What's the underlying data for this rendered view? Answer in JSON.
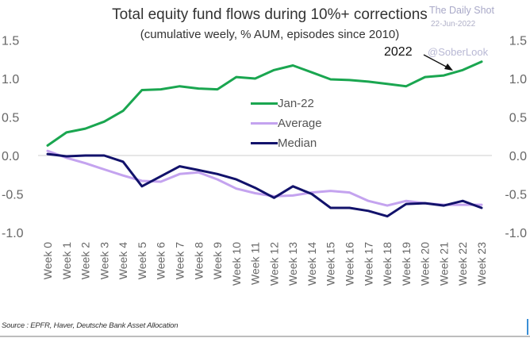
{
  "chart_data": {
    "type": "line",
    "title": "Total equity fund flows during 10%+ corrections",
    "subtitle": "(cumulative weely, % AUM, episodes since 2010)",
    "xlabel": "",
    "ylabel": "",
    "ylim": [
      -1.0,
      1.5
    ],
    "yticks": [
      "1.5",
      "1.0",
      "0.5",
      "0.0",
      "-0.5",
      "-1.0"
    ],
    "ytick_values": [
      1.5,
      1.0,
      0.5,
      0.0,
      -0.5,
      -1.0
    ],
    "grid": false,
    "legend_position": "center",
    "categories": [
      "Week 0",
      "Week 1",
      "Week 2",
      "Week 3",
      "Week 4",
      "Week 5",
      "Week 6",
      "Week 7",
      "Week 8",
      "Week 9",
      "Week 10",
      "Week 11",
      "Week 12",
      "Week 13",
      "Week 14",
      "Week 15",
      "Week 16",
      "Week 17",
      "Week 18",
      "Week 19",
      "Week 20",
      "Week 21",
      "Week 22",
      "Week 23"
    ],
    "series": [
      {
        "name": "Jan-22",
        "color": "#1aa650",
        "width": 3,
        "values": [
          0.13,
          0.3,
          0.35,
          0.44,
          0.58,
          0.85,
          0.86,
          0.9,
          0.87,
          0.86,
          1.02,
          1.0,
          1.11,
          1.17,
          1.08,
          0.99,
          0.98,
          0.96,
          0.93,
          0.9,
          1.02,
          1.04,
          1.11,
          1.22
        ]
      },
      {
        "name": "Average",
        "color": "#c4a3ef",
        "width": 3,
        "values": [
          0.06,
          -0.03,
          -0.1,
          -0.18,
          -0.26,
          -0.33,
          -0.34,
          -0.24,
          -0.22,
          -0.31,
          -0.43,
          -0.49,
          -0.53,
          -0.52,
          -0.48,
          -0.46,
          -0.48,
          -0.59,
          -0.65,
          -0.59,
          -0.62,
          -0.64,
          -0.64,
          -0.64
        ]
      },
      {
        "name": "Median",
        "color": "#12126b",
        "width": 3,
        "values": [
          0.02,
          -0.01,
          0.0,
          0.0,
          -0.08,
          -0.4,
          -0.27,
          -0.14,
          -0.19,
          -0.24,
          -0.31,
          -0.42,
          -0.55,
          -0.4,
          -0.5,
          -0.68,
          -0.68,
          -0.72,
          -0.79,
          -0.63,
          -0.62,
          -0.65,
          -0.59,
          -0.68
        ]
      }
    ],
    "annotation": {
      "text": "2022",
      "points_to": "Jan-22"
    }
  },
  "watermark": {
    "brand": "The Daily Shot",
    "date": "22-Jun-2022",
    "handle": "@SoberLook"
  },
  "source": "Source : EPFR, Haver, Deutsche Bank Asset Allocation"
}
